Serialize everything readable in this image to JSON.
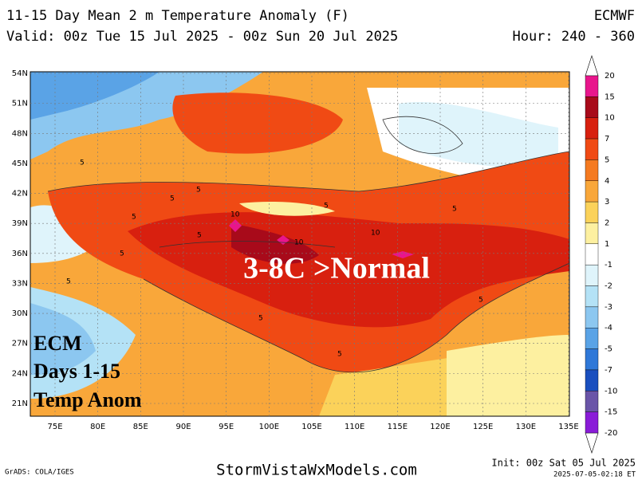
{
  "header": {
    "title": "11-15 Day Mean 2 m Temperature Anomaly (F)",
    "valid": "Valid: 00z Tue 15 Jul 2025 - 00z Sun 20 Jul 2025",
    "model": "ECMWF",
    "hour": "Hour: 240 - 360"
  },
  "map": {
    "lat_labels": [
      "54N",
      "51N",
      "48N",
      "45N",
      "42N",
      "39N",
      "36N",
      "33N",
      "30N",
      "27N",
      "24N",
      "21N"
    ],
    "lon_labels": [
      "75E",
      "80E",
      "85E",
      "90E",
      "95E",
      "100E",
      "105E",
      "110E",
      "115E",
      "120E",
      "125E",
      "130E",
      "135E"
    ],
    "contour_labels": [
      "5",
      "5",
      "5",
      "5",
      "5",
      "5",
      "5",
      "5",
      "5",
      "5",
      "5",
      "5",
      "10",
      "10",
      "10"
    ],
    "headline": "3-8C >Normal",
    "legend_text": [
      "ECM",
      "Days 1-15",
      "Temp Anom"
    ]
  },
  "colorbar": {
    "levels": [
      "20",
      "15",
      "10",
      "7",
      "5",
      "4",
      "3",
      "2",
      "1",
      "-1",
      "-2",
      "-3",
      "-4",
      "-5",
      "-7",
      "-10",
      "-15",
      "-20"
    ],
    "colors": [
      "#e8168c",
      "#a80a1a",
      "#d8200f",
      "#f04a14",
      "#f57a20",
      "#f9a73a",
      "#fbd25a",
      "#fdf0a0",
      "#ffffff",
      "#dff4fb",
      "#b4e2f6",
      "#8cc7f0",
      "#5aa3e6",
      "#2f78d8",
      "#1a4fbf",
      "#6a55a8",
      "#8a1cd8"
    ]
  },
  "footer": {
    "credit": "GrADS: COLA/IGES",
    "site": "StormVistaWxModels.com",
    "init": "Init: 00z Sat 05 Jul 2025",
    "stamp": "2025-07-05-02:18 ET"
  }
}
